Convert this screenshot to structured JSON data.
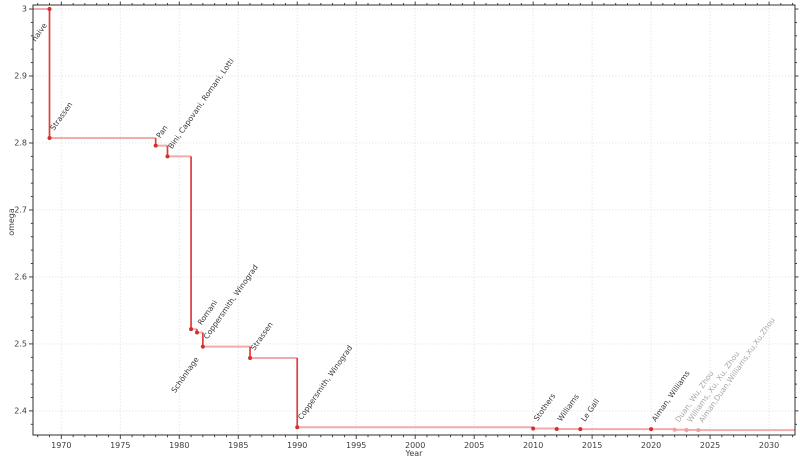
{
  "chart_data": {
    "type": "line",
    "subtype": "step-post",
    "title": "",
    "xlabel": "Year",
    "ylabel": "omega",
    "xlim": [
      1967.6,
      2032.2
    ],
    "ylim": [
      2.364,
      3.006
    ],
    "x_ticks_major": [
      1970,
      1975,
      1980,
      1985,
      1990,
      1995,
      2000,
      2005,
      2010,
      2015,
      2020,
      2025,
      2030
    ],
    "x_minor_step": 1,
    "y_ticks_major": [
      2.4,
      2.5,
      2.6,
      2.7,
      2.8,
      2.9,
      3
    ],
    "y_tick_labels": [
      "2.4",
      "2.5",
      "2.6",
      "2.7",
      "2.8",
      "2.9",
      "3"
    ],
    "y_minor_step": 0.02,
    "grid": "dotted",
    "legend": "none",
    "colors": {
      "line_horizontal": "#f2abab",
      "line_vertical": "#e23b3b",
      "marker": "#d32f2f",
      "marker_faded": "#f09e9e",
      "label": "#3a3a3a",
      "label_faded": "#a8a8a8",
      "grid": "#dadada",
      "spine": "#2f2f2f"
    },
    "points": [
      {
        "year": 1969,
        "omega": 3.0,
        "label": "naive",
        "faded": false
      },
      {
        "year": 1969,
        "omega": 2.8074,
        "label": "Strassen",
        "faded": false
      },
      {
        "year": 1978,
        "omega": 2.796,
        "label": "Pan",
        "faded": false
      },
      {
        "year": 1979,
        "omega": 2.78,
        "label": "Bini, Capovani, Romani, Lotti",
        "faded": false
      },
      {
        "year": 1981,
        "omega": 2.522,
        "label": "Schönhage",
        "faded": false
      },
      {
        "year": 1981.5,
        "omega": 2.517,
        "label": "Romani",
        "faded": false
      },
      {
        "year": 1982,
        "omega": 2.496,
        "label": "Coppersmith, Winograd",
        "faded": false
      },
      {
        "year": 1986,
        "omega": 2.479,
        "label": "Strassen",
        "faded": false
      },
      {
        "year": 1990,
        "omega": 2.3755,
        "label": "Coppersmith, Winograd",
        "faded": false
      },
      {
        "year": 2010,
        "omega": 2.3737,
        "label": "Stothers",
        "faded": false
      },
      {
        "year": 2012,
        "omega": 2.3729,
        "label": "Williams",
        "faded": false
      },
      {
        "year": 2014,
        "omega": 2.3728639,
        "label": "Le Gall",
        "faded": false
      },
      {
        "year": 2020,
        "omega": 2.3728596,
        "label": "Alman, Williams",
        "faded": false
      },
      {
        "year": 2022,
        "omega": 2.371866,
        "label": "Duan, Wu, Zhou",
        "faded": true
      },
      {
        "year": 2023,
        "omega": 2.371552,
        "label": "Williams, Xu, Xu, Zhou",
        "faded": true
      },
      {
        "year": 2024,
        "omega": 2.371339,
        "label": "Alman,Duan,Williams,Xu,Xu,Zhou",
        "faded": true
      }
    ]
  }
}
